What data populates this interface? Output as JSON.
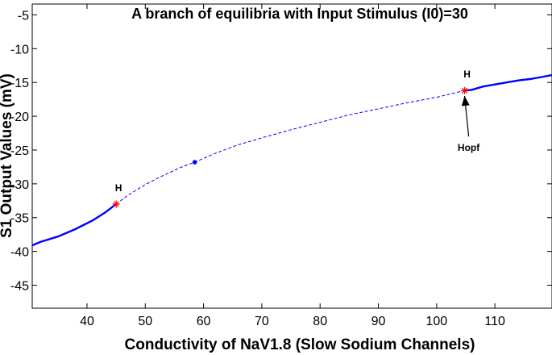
{
  "chart_data": {
    "type": "line",
    "title": "A branch of equilibria with Input Stimulus (I0)=30",
    "xlabel": "Conductivity of NaV1.8 (Slow Sodium Channels)",
    "ylabel": "S1 Output Values (mV)",
    "xlim": [
      30.6,
      119.8
    ],
    "ylim": [
      -48.4,
      -3.4
    ],
    "xticks": [
      40,
      50,
      60,
      70,
      80,
      90,
      100,
      110
    ],
    "yticks": [
      -5,
      -10,
      -15,
      -20,
      -25,
      -30,
      -35,
      -40,
      -45
    ],
    "grid": false,
    "line_color": "#0000ff",
    "marker_color": "#ff0000",
    "series": [
      {
        "style": "solid",
        "x": [
          30.6,
          32,
          35,
          38,
          41,
          43,
          45
        ],
        "y": [
          -39.1,
          -38.6,
          -37.8,
          -36.7,
          -35.4,
          -34.3,
          -33.0
        ]
      },
      {
        "style": "dashed",
        "x": [
          45,
          47,
          50,
          53,
          56,
          58.5,
          62,
          66,
          70,
          75,
          80,
          85,
          90,
          95,
          100,
          104.8
        ],
        "y": [
          -33.0,
          -31.7,
          -30.1,
          -28.8,
          -27.6,
          -26.8,
          -25.5,
          -24.2,
          -23.2,
          -22.0,
          -20.9,
          -19.8,
          -18.9,
          -18.0,
          -17.2,
          -16.2
        ]
      },
      {
        "style": "solid",
        "x": [
          104.8,
          106,
          108,
          110,
          112,
          114,
          116,
          118,
          119.8
        ],
        "y": [
          -16.2,
          -16.1,
          -15.6,
          -15.3,
          -15.0,
          -14.7,
          -14.5,
          -14.2,
          -13.9
        ]
      }
    ],
    "points": [
      {
        "x": 45,
        "y": -33.0,
        "marker": "star",
        "label": "H"
      },
      {
        "x": 104.8,
        "y": -16.2,
        "marker": "star",
        "label": "H"
      },
      {
        "x": 58.5,
        "y": -26.8,
        "marker": "dot"
      }
    ],
    "annotations": [
      {
        "text": "Hopf",
        "arrow_from": {
          "x": 105.5,
          "y": -23.0
        },
        "arrow_to": {
          "x": 104.8,
          "y": -17.0
        }
      }
    ]
  }
}
